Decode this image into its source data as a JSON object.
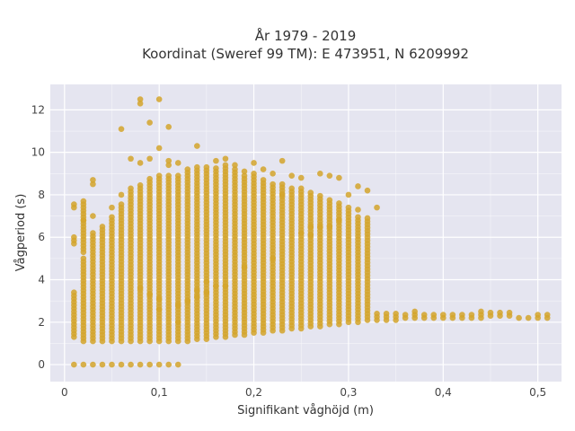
{
  "chart_data": {
    "type": "scatter",
    "title": "År 1979 - 2019",
    "subtitle": "Koordinat (Sweref 99 TM): E 473951, N 6209992",
    "xlabel": "Signifikant våghöjd (m)",
    "ylabel": "Vågperiod (s)",
    "xlim": [
      -0.015,
      0.525
    ],
    "ylim": [
      -0.8,
      13.2
    ],
    "x_ticks": [
      0,
      0.1,
      0.2,
      0.3,
      0.4,
      0.5
    ],
    "x_tick_labels": [
      "0",
      "0,1",
      "0,2",
      "0,3",
      "0,4",
      "0,5"
    ],
    "y_ticks": [
      0,
      2,
      4,
      6,
      8,
      10,
      12
    ],
    "y_tick_labels": [
      "0",
      "2",
      "4",
      "6",
      "8",
      "10",
      "12"
    ],
    "grid": true,
    "legend": "none",
    "colors": {
      "marker": "#d4a52c",
      "plot_bg": "#e5e5f0",
      "grid": "#ffffff"
    },
    "series": [
      {
        "columns": [
          [
            0.01,
            1.3,
            3.4
          ],
          [
            0.01,
            5.7,
            6.0
          ],
          [
            0.01,
            7.4,
            7.6
          ],
          [
            0.02,
            1.1,
            5.0
          ],
          [
            0.02,
            5.3,
            7.7
          ],
          [
            0.03,
            1.1,
            6.3
          ],
          [
            0.04,
            1.1,
            6.6
          ],
          [
            0.05,
            1.1,
            7.0
          ],
          [
            0.06,
            1.1,
            7.6
          ],
          [
            0.07,
            1.1,
            8.3
          ],
          [
            0.08,
            1.1,
            8.5
          ],
          [
            0.09,
            1.1,
            8.8
          ],
          [
            0.1,
            1.1,
            9.0
          ],
          [
            0.11,
            1.1,
            9.0
          ],
          [
            0.12,
            1.1,
            9.0
          ],
          [
            0.13,
            1.1,
            9.2
          ],
          [
            0.14,
            1.2,
            9.3
          ],
          [
            0.15,
            1.2,
            9.3
          ],
          [
            0.16,
            1.3,
            9.3
          ],
          [
            0.17,
            1.3,
            9.4
          ],
          [
            0.18,
            1.4,
            9.2
          ],
          [
            0.19,
            1.4,
            9.0
          ],
          [
            0.2,
            1.5,
            9.0
          ],
          [
            0.21,
            1.5,
            8.8
          ],
          [
            0.22,
            1.6,
            8.6
          ],
          [
            0.23,
            1.6,
            8.6
          ],
          [
            0.24,
            1.7,
            8.4
          ],
          [
            0.25,
            1.7,
            8.3
          ],
          [
            0.26,
            1.8,
            8.1
          ],
          [
            0.27,
            1.8,
            8.0
          ],
          [
            0.28,
            1.9,
            7.8
          ],
          [
            0.29,
            1.9,
            7.7
          ],
          [
            0.3,
            2.0,
            7.4
          ],
          [
            0.31,
            2.0,
            7.0
          ],
          [
            0.32,
            2.1,
            6.9
          ],
          [
            0.33,
            2.1,
            2.4
          ],
          [
            0.34,
            2.1,
            2.4
          ],
          [
            0.35,
            2.1,
            2.4
          ],
          [
            0.36,
            2.2,
            2.4
          ],
          [
            0.37,
            2.2,
            2.5
          ],
          [
            0.38,
            2.2,
            2.4
          ],
          [
            0.39,
            2.2,
            2.4
          ],
          [
            0.4,
            2.2,
            2.4
          ],
          [
            0.41,
            2.2,
            2.4
          ],
          [
            0.42,
            2.2,
            2.4
          ],
          [
            0.43,
            2.2,
            2.4
          ],
          [
            0.44,
            2.2,
            2.5
          ],
          [
            0.45,
            2.3,
            2.5
          ],
          [
            0.46,
            2.3,
            2.5
          ],
          [
            0.47,
            2.3,
            2.5
          ],
          [
            0.48,
            2.2,
            2.3
          ],
          [
            0.49,
            2.2,
            2.3
          ],
          [
            0.5,
            2.2,
            2.4
          ],
          [
            0.51,
            2.2,
            2.4
          ]
        ],
        "points": [
          [
            0.01,
            0
          ],
          [
            0.02,
            0
          ],
          [
            0.03,
            0
          ],
          [
            0.04,
            0
          ],
          [
            0.05,
            0
          ],
          [
            0.06,
            0
          ],
          [
            0.07,
            0
          ],
          [
            0.08,
            0
          ],
          [
            0.09,
            0
          ],
          [
            0.1,
            0
          ],
          [
            0.11,
            0
          ],
          [
            0.12,
            0
          ],
          [
            0.02,
            6.8
          ],
          [
            0.03,
            7.0
          ],
          [
            0.03,
            8.5
          ],
          [
            0.03,
            8.7
          ],
          [
            0.05,
            7.4
          ],
          [
            0.06,
            8.0
          ],
          [
            0.07,
            9.7
          ],
          [
            0.08,
            9.5
          ],
          [
            0.08,
            12.3
          ],
          [
            0.08,
            12.5
          ],
          [
            0.06,
            11.1
          ],
          [
            0.09,
            11.4
          ],
          [
            0.1,
            12.5
          ],
          [
            0.11,
            11.2
          ],
          [
            0.1,
            10.2
          ],
          [
            0.09,
            9.7
          ],
          [
            0.11,
            9.6
          ],
          [
            0.14,
            10.3
          ],
          [
            0.12,
            9.5
          ],
          [
            0.16,
            9.6
          ],
          [
            0.17,
            9.7
          ],
          [
            0.18,
            9.4
          ],
          [
            0.23,
            9.6
          ],
          [
            0.24,
            8.9
          ],
          [
            0.28,
            8.9
          ],
          [
            0.29,
            8.8
          ],
          [
            0.31,
            8.4
          ],
          [
            0.32,
            8.2
          ],
          [
            0.33,
            7.4
          ],
          [
            0.27,
            9.0
          ],
          [
            0.21,
            9.2
          ],
          [
            0.22,
            9.0
          ],
          [
            0.2,
            9.5
          ],
          [
            0.3,
            8.0
          ],
          [
            0.31,
            7.3
          ],
          [
            0.29,
            6.8
          ],
          [
            0.26,
            6.1
          ],
          [
            0.25,
            6.2
          ],
          [
            0.27,
            6.5
          ],
          [
            0.28,
            6.5
          ],
          [
            0.22,
            5.0
          ],
          [
            0.19,
            4.6
          ],
          [
            0.17,
            3.7
          ],
          [
            0.16,
            3.7
          ],
          [
            0.15,
            3.4
          ],
          [
            0.14,
            3.2
          ],
          [
            0.13,
            3.0
          ],
          [
            0.12,
            2.8
          ],
          [
            0.1,
            2.6
          ],
          [
            0.1,
            3.1
          ],
          [
            0.09,
            3.3
          ],
          [
            0.08,
            3.6
          ],
          [
            0.15,
            3.9
          ],
          [
            0.14,
            3.5
          ],
          [
            0.11,
            9.4
          ],
          [
            0.19,
            9.1
          ],
          [
            0.25,
            8.8
          ],
          [
            0.23,
            8.0
          ],
          [
            0.26,
            6.5
          ],
          [
            0.12,
            2.0
          ]
        ]
      }
    ]
  }
}
